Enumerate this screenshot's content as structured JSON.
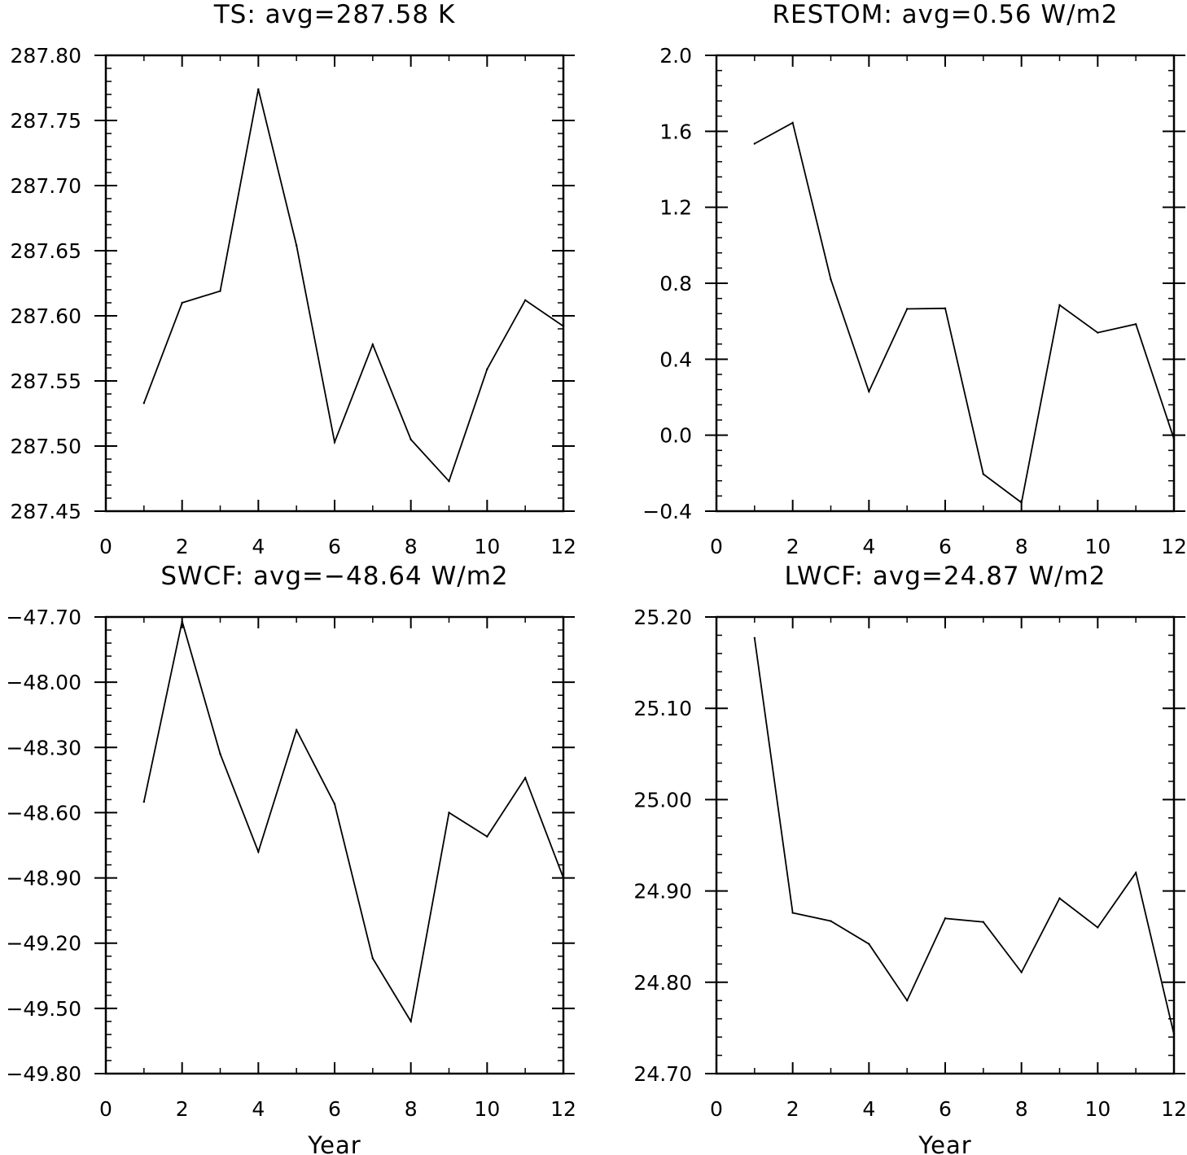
{
  "chart_data": [
    {
      "type": "line",
      "title": "TS: avg=287.58 K",
      "xlabel": "",
      "ylabel": "",
      "xlim": [
        0,
        12
      ],
      "ylim": [
        287.45,
        287.8
      ],
      "xticks": [
        "0",
        "2",
        "4",
        "6",
        "8",
        "10",
        "12"
      ],
      "yticks": [
        "287.45",
        "287.50",
        "287.55",
        "287.60",
        "287.65",
        "287.70",
        "287.75",
        "287.80"
      ],
      "x": [
        1,
        2,
        3,
        4,
        5,
        6,
        7,
        8,
        9,
        10,
        11,
        12
      ],
      "y": [
        287.533,
        287.61,
        287.619,
        287.774,
        287.654,
        287.503,
        287.578,
        287.505,
        287.473,
        287.559,
        287.612,
        287.592
      ],
      "grid": false,
      "color": "#000000"
    },
    {
      "type": "line",
      "title": "RESTOM: avg=0.56 W/m2",
      "xlabel": "",
      "ylabel": "",
      "xlim": [
        0,
        12
      ],
      "ylim": [
        -0.4,
        2.0
      ],
      "xticks": [
        "0",
        "2",
        "4",
        "6",
        "8",
        "10",
        "12"
      ],
      "yticks": [
        "−0.4",
        "0.0",
        "0.4",
        "0.8",
        "1.2",
        "1.6",
        "2.0"
      ],
      "x": [
        1,
        2,
        3,
        4,
        5,
        6,
        7,
        8,
        9,
        10,
        11,
        12
      ],
      "y": [
        1.535,
        1.645,
        0.82,
        0.23,
        0.665,
        0.668,
        -0.205,
        -0.355,
        0.685,
        0.54,
        0.585,
        -0.02
      ],
      "grid": false,
      "color": "#000000"
    },
    {
      "type": "line",
      "title": "SWCF: avg=−48.64 W/m2",
      "xlabel": "Year",
      "ylabel": "",
      "xlim": [
        0,
        12
      ],
      "ylim": [
        -49.8,
        -47.7
      ],
      "xticks": [
        "0",
        "2",
        "4",
        "6",
        "8",
        "10",
        "12"
      ],
      "yticks": [
        "−49.80",
        "−49.50",
        "−49.20",
        "−48.90",
        "−48.60",
        "−48.30",
        "−48.00",
        "−47.70"
      ],
      "x": [
        1,
        2,
        3,
        4,
        5,
        6,
        7,
        8,
        9,
        10,
        11,
        12
      ],
      "y": [
        -48.55,
        -47.72,
        -48.33,
        -48.78,
        -48.22,
        -48.56,
        -49.27,
        -49.56,
        -48.6,
        -48.71,
        -48.44,
        -48.9
      ],
      "grid": false,
      "color": "#000000"
    },
    {
      "type": "line",
      "title": "LWCF: avg=24.87 W/m2",
      "xlabel": "Year",
      "ylabel": "",
      "xlim": [
        0,
        12
      ],
      "ylim": [
        24.7,
        25.2
      ],
      "xticks": [
        "0",
        "2",
        "4",
        "6",
        "8",
        "10",
        "12"
      ],
      "yticks": [
        "24.70",
        "24.80",
        "24.90",
        "25.00",
        "25.10",
        "25.20"
      ],
      "x": [
        1,
        2,
        3,
        4,
        5,
        6,
        7,
        8,
        9,
        10,
        11,
        12
      ],
      "y": [
        25.177,
        24.876,
        24.867,
        24.842,
        24.78,
        24.87,
        24.866,
        24.811,
        24.892,
        24.86,
        24.92,
        24.743
      ],
      "grid": false,
      "color": "#000000"
    }
  ]
}
